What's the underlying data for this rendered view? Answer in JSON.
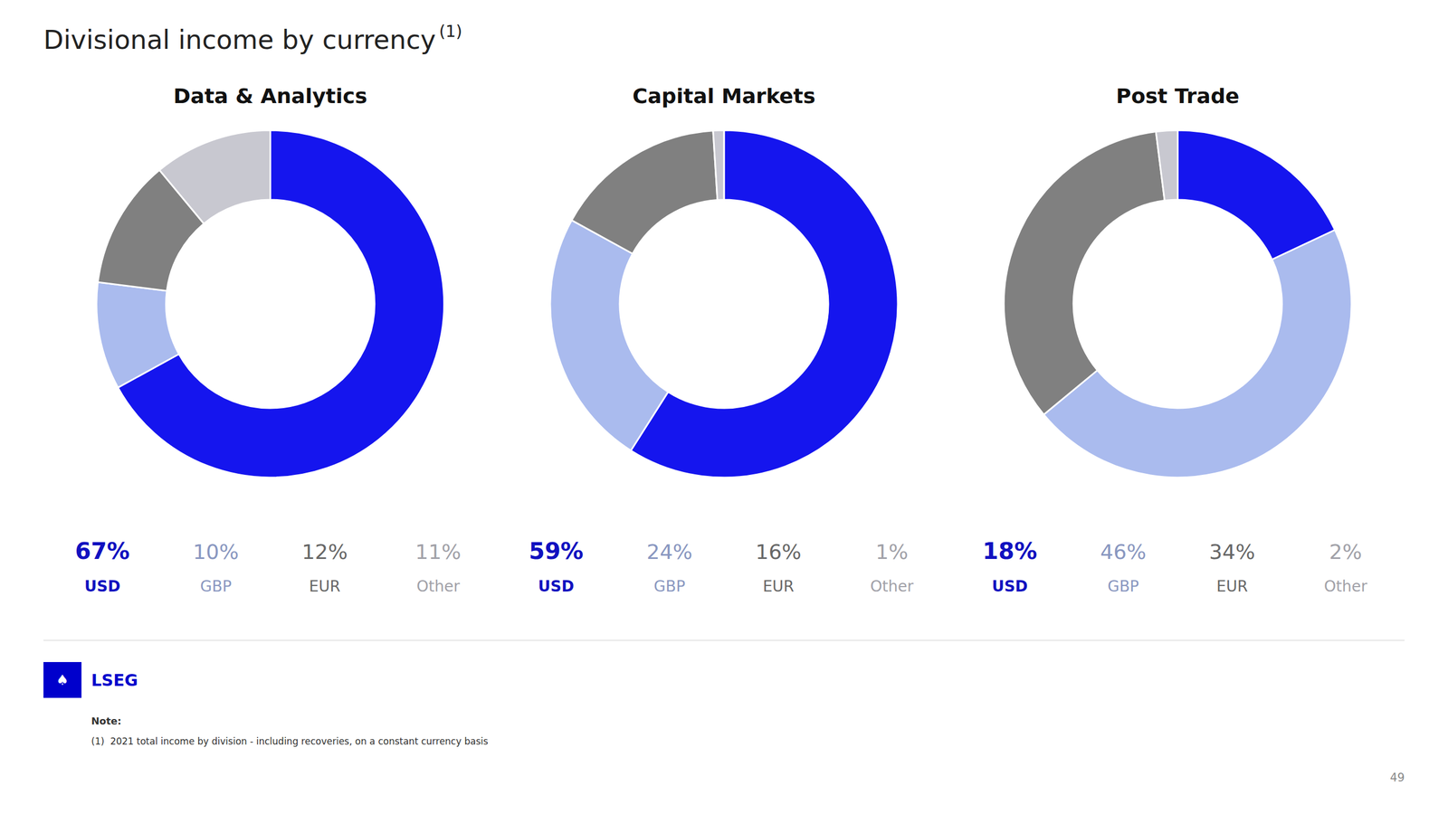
{
  "title": "Divisional income by currency",
  "title_superscript": "(1)",
  "chart_data": [
    {
      "type": "pie",
      "title": "Data & Analytics",
      "categories": [
        "USD",
        "GBP",
        "EUR",
        "Other"
      ],
      "values": [
        67,
        10,
        12,
        11
      ],
      "value_labels": [
        "67%",
        "10%",
        "12%",
        "11%"
      ],
      "colors": [
        "#1515ee",
        "#aabbee",
        "#808080",
        "#c8c8d0"
      ],
      "data_labels": true
    },
    {
      "type": "pie",
      "title": "Capital Markets",
      "categories": [
        "USD",
        "GBP",
        "EUR",
        "Other"
      ],
      "values": [
        59,
        24,
        16,
        1
      ],
      "value_labels": [
        "59%",
        "24%",
        "16%",
        "1%"
      ],
      "colors": [
        "#1515ee",
        "#aabbee",
        "#808080",
        "#c8c8d0"
      ],
      "data_labels": true
    },
    {
      "type": "pie",
      "title": "Post Trade",
      "categories": [
        "USD",
        "GBP",
        "EUR",
        "Other"
      ],
      "values": [
        18,
        46,
        34,
        2
      ],
      "value_labels": [
        "18%",
        "46%",
        "34%",
        "2%"
      ],
      "colors": [
        "#1515ee",
        "#aabbee",
        "#808080",
        "#c8c8d0"
      ],
      "data_labels": true
    }
  ],
  "logo_symbol": "♠",
  "logo_text": "LSEG",
  "note_title": "Note:",
  "note": "(1)  2021 total income by division - including recoveries, on a constant currency basis",
  "page_number": "49"
}
